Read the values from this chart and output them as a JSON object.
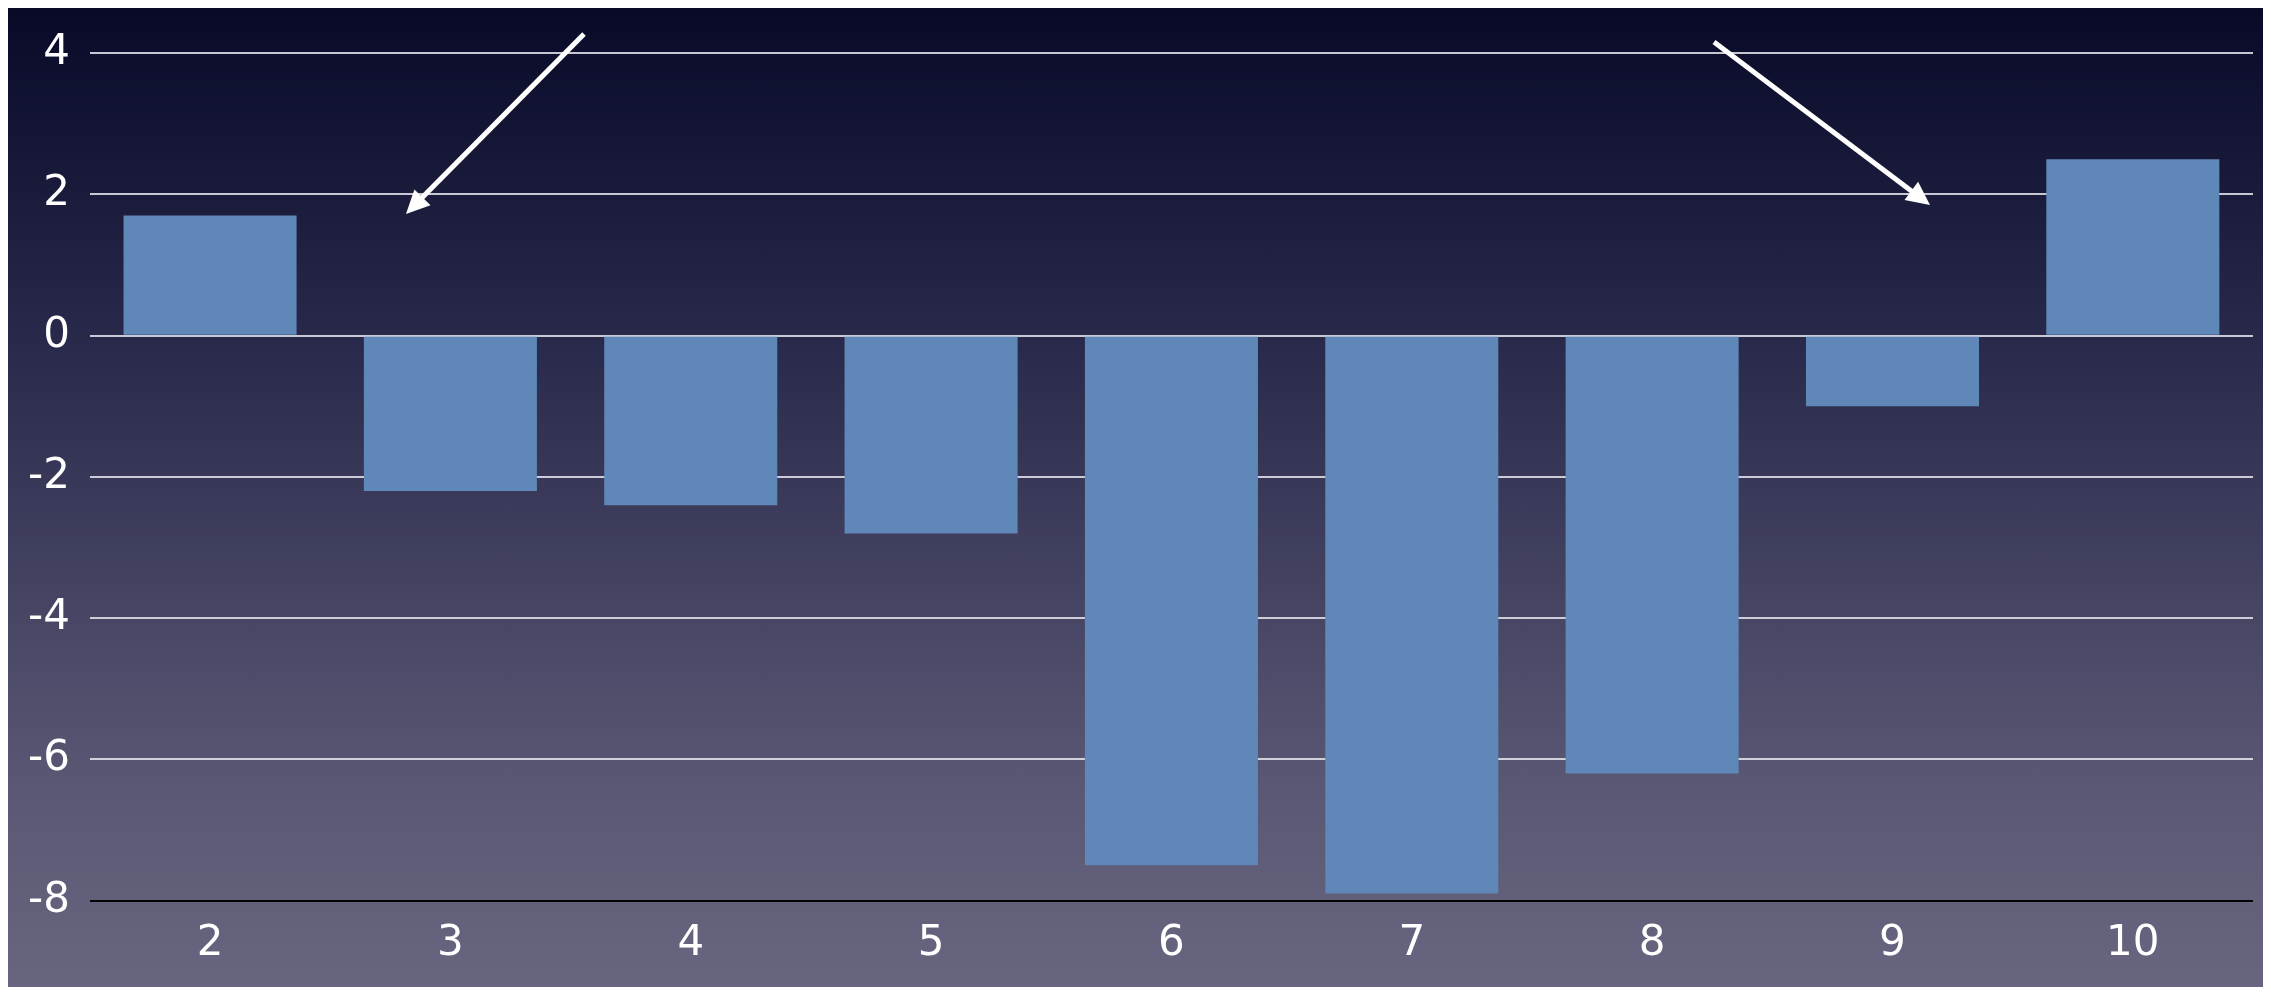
{
  "chart_data": {
    "type": "bar",
    "categories": [
      "2",
      "3",
      "4",
      "5",
      "6",
      "7",
      "8",
      "9",
      "10"
    ],
    "values": [
      1.7,
      -2.2,
      -2.4,
      -2.8,
      -7.5,
      -7.9,
      -6.2,
      -1,
      2.5
    ],
    "color": "#5f87b8",
    "ylim": [
      -8,
      4
    ],
    "yticks": [
      -8,
      -6,
      -4,
      -2,
      0,
      2,
      4
    ],
    "grid": "y",
    "legend": false
  }
}
